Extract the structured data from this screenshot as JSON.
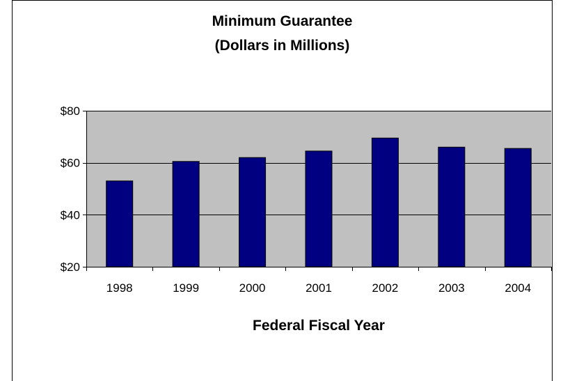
{
  "chart_data": {
    "type": "bar",
    "title": "Minimum Guarantee",
    "subtitle": "(Dollars in Millions)",
    "xlabel": "Federal Fiscal Year",
    "ylabel": "",
    "categories": [
      "1998",
      "1999",
      "2000",
      "2001",
      "2002",
      "2003",
      "2004"
    ],
    "values": [
      53,
      60.5,
      62,
      64.5,
      69.5,
      66,
      65.5
    ],
    "ylim": [
      20,
      80
    ],
    "yticks": [
      20,
      40,
      60,
      80
    ],
    "ytick_labels": [
      "$20",
      "$40",
      "$60",
      "$80"
    ],
    "grid": true,
    "legend": "none",
    "colors": {
      "bar": "#000080",
      "plot_background": "#c0c0c0",
      "gridline": "#000000"
    }
  }
}
